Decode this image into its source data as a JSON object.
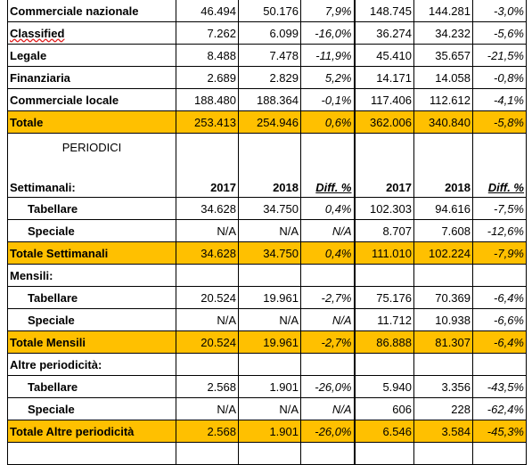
{
  "table": {
    "rows": [
      {
        "label": "Commerciale nazionale",
        "cells": [
          "46.494",
          "50.176",
          "7,9%",
          "148.745",
          "144.281",
          "-3,0%"
        ]
      },
      {
        "label": "Classified",
        "cells": [
          "7.262",
          "6.099",
          "-16,0%",
          "36.274",
          "34.232",
          "-5,6%"
        ]
      },
      {
        "label": "Legale",
        "cells": [
          "8.488",
          "7.478",
          "-11,9%",
          "45.410",
          "35.657",
          "-21,5%"
        ]
      },
      {
        "label": "Finanziaria",
        "cells": [
          "2.689",
          "2.829",
          "5,2%",
          "14.171",
          "14.058",
          "-0,8%"
        ]
      },
      {
        "label": "Commerciale locale",
        "cells": [
          "188.480",
          "188.364",
          "-0,1%",
          "117.406",
          "112.612",
          "-4,1%"
        ]
      },
      {
        "label": "Totale",
        "highlight": true,
        "cells": [
          "253.413",
          "254.946",
          "0,6%",
          "362.006",
          "340.840",
          "-5,8%"
        ]
      },
      {
        "section": "PERIODICI",
        "label": "Settimanali:",
        "header": true,
        "cells": [
          "2017",
          "2018",
          "Diff. %",
          "2017",
          "2018",
          "Diff. %"
        ]
      },
      {
        "label": "Tabellare",
        "indent": true,
        "cells": [
          "34.628",
          "34.750",
          "0,4%",
          "102.303",
          "94.616",
          "-7,5%"
        ]
      },
      {
        "label": "Speciale",
        "indent": true,
        "cells": [
          "N/A",
          "N/A",
          "N/A",
          "8.707",
          "7.608",
          "-12,6%"
        ]
      },
      {
        "label": "Totale Settimanali",
        "highlight": true,
        "cells": [
          "34.628",
          "34.750",
          "0,4%",
          "111.010",
          "102.224",
          "-7,9%"
        ]
      },
      {
        "label": "Mensili:"
      },
      {
        "label": "Tabellare",
        "indent": true,
        "cells": [
          "20.524",
          "19.961",
          "-2,7%",
          "75.176",
          "70.369",
          "-6,4%"
        ]
      },
      {
        "label": "Speciale",
        "indent": true,
        "cells": [
          "N/A",
          "N/A",
          "N/A",
          "11.712",
          "10.938",
          "-6,6%"
        ]
      },
      {
        "label": "Totale Mensili",
        "highlight": true,
        "cells": [
          "20.524",
          "19.961",
          "-2,7%",
          "86.888",
          "81.307",
          "-6,4%"
        ]
      },
      {
        "label": "Altre periodicità:"
      },
      {
        "label": "Tabellare",
        "indent": true,
        "cells": [
          "2.568",
          "1.901",
          "-26,0%",
          "5.940",
          "3.356",
          "-43,5%"
        ]
      },
      {
        "label": "Speciale",
        "indent": true,
        "cells": [
          "N/A",
          "N/A",
          "N/A",
          "606",
          "228",
          "-62,4%"
        ]
      },
      {
        "label": "Totale Altre periodicità",
        "highlight": true,
        "cells": [
          "2.568",
          "1.901",
          "-26,0%",
          "6.546",
          "3.584",
          "-45,3%"
        ]
      }
    ]
  }
}
